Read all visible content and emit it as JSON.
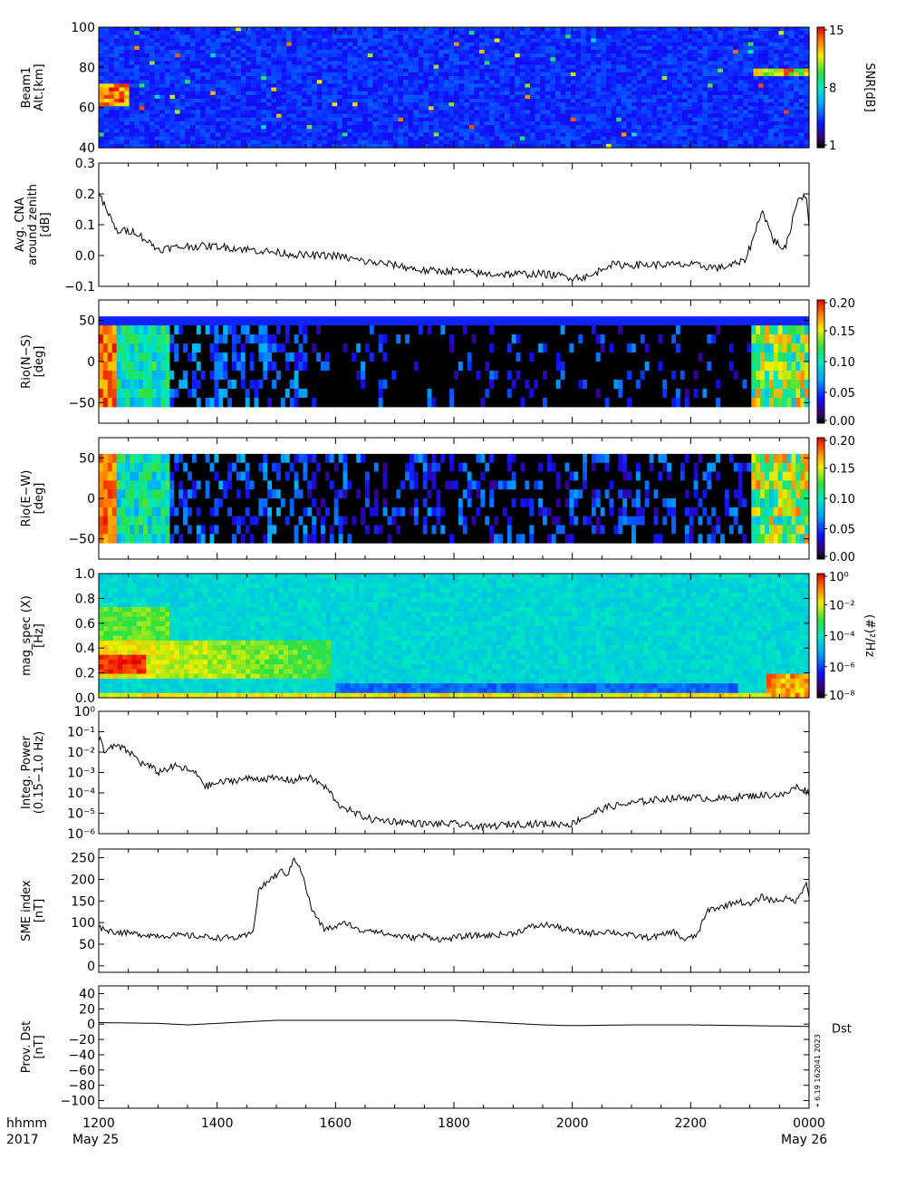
{
  "x_axis": {
    "ticks": [
      "1200",
      "1400",
      "1600",
      "1800",
      "2000",
      "2200",
      "0000"
    ],
    "row_label_1": "hhmm",
    "row_label_2": "2017",
    "start_date": "May 25",
    "end_date": "May 26"
  },
  "side_stamp": "⌖ 6.19 162041 2023",
  "colors": {
    "line": "#000000",
    "background": "#ffffff"
  },
  "chart_data": [
    {
      "id": "beam1",
      "type": "heatmap",
      "ylabel": "Beam1\nAlt.[km]",
      "yticks": [
        "40",
        "60",
        "80",
        "100"
      ],
      "ylim": [
        40,
        100
      ],
      "colorbar": {
        "label": "SNR[dB]",
        "ticks": [
          "1",
          "8",
          "15"
        ],
        "scale": "linear"
      }
    },
    {
      "id": "cna",
      "type": "line",
      "ylabel": "Avg. CNA\naround zenith\n[dB]",
      "yticks": [
        "−0.1",
        "0.0",
        "0.1",
        "0.2",
        "0.3"
      ],
      "ylim": [
        -0.1,
        0.3
      ],
      "x": [
        12.0,
        12.3,
        12.6,
        13.0,
        13.5,
        14.0,
        14.5,
        15.0,
        15.5,
        16.0,
        16.5,
        17.0,
        17.5,
        18.0,
        18.5,
        19.0,
        19.5,
        20.0,
        20.3,
        20.6,
        21.0,
        21.5,
        22.0,
        22.5,
        22.9,
        23.05,
        23.2,
        23.4,
        23.6,
        23.8,
        23.95,
        24.0
      ],
      "values": [
        0.2,
        0.08,
        0.08,
        0.02,
        0.03,
        0.03,
        0.02,
        0.01,
        0.0,
        0.0,
        -0.02,
        -0.03,
        -0.05,
        -0.05,
        -0.06,
        -0.06,
        -0.06,
        -0.07,
        -0.07,
        -0.03,
        -0.03,
        -0.03,
        -0.03,
        -0.04,
        -0.02,
        0.05,
        0.15,
        0.05,
        0.02,
        0.18,
        0.2,
        0.1
      ]
    },
    {
      "id": "rio-ns",
      "type": "heatmap",
      "ylabel": "Rio(N−S)\n[deg]",
      "yticks": [
        "−50",
        "0",
        "50"
      ],
      "ylim": [
        -75,
        75
      ],
      "colorbar": {
        "label": "",
        "ticks": [
          "0.00",
          "0.05",
          "0.10",
          "0.15",
          "0.20"
        ],
        "scale": "linear"
      }
    },
    {
      "id": "rio-ew",
      "type": "heatmap",
      "ylabel": "Rio(E−W)\n[deg]",
      "yticks": [
        "−50",
        "0",
        "50"
      ],
      "ylim": [
        -75,
        75
      ],
      "colorbar": {
        "label": "",
        "ticks": [
          "0.00",
          "0.05",
          "0.10",
          "0.15",
          "0.20"
        ],
        "scale": "linear"
      }
    },
    {
      "id": "mag-spec",
      "type": "heatmap",
      "ylabel": "mag_spec (X)\n[Hz]",
      "yticks": [
        "0.0",
        "0.2",
        "0.4",
        "0.6",
        "0.8",
        "1.0"
      ],
      "ylim": [
        0,
        1
      ],
      "colorbar": {
        "label": "(#)²/Hz",
        "ticks": [
          "10⁻⁸",
          "10⁻⁶",
          "10⁻⁴",
          "10⁻²",
          "10⁰"
        ],
        "scale": "log"
      }
    },
    {
      "id": "integ-power",
      "type": "line",
      "ylabel": "Integ. Power\n(0.15−1.0 Hz)",
      "yticks": [
        "10⁻⁶",
        "10⁻⁵",
        "10⁻⁴",
        "10⁻³",
        "10⁻²",
        "10⁻¹",
        "10⁰"
      ],
      "ylim": [
        1e-06,
        1
      ],
      "yscale": "log",
      "x": [
        12.0,
        12.1,
        12.3,
        12.5,
        12.7,
        13.0,
        13.3,
        13.6,
        13.8,
        14.0,
        14.5,
        15.0,
        15.3,
        15.5,
        15.8,
        16.0,
        16.3,
        16.6,
        17.0,
        17.5,
        18.0,
        18.5,
        19.0,
        19.5,
        20.0,
        20.3,
        20.6,
        21.0,
        21.5,
        22.0,
        22.5,
        23.0,
        23.3,
        23.6,
        23.8,
        24.0
      ],
      "values": [
        0.05,
        0.01,
        0.02,
        0.01,
        0.003,
        0.001,
        0.002,
        0.001,
        0.0002,
        0.0003,
        0.0005,
        0.0005,
        0.0004,
        0.0006,
        0.0002,
        3e-05,
        1e-05,
        5e-06,
        4e-06,
        3e-06,
        3e-06,
        2e-06,
        3e-06,
        3e-06,
        3e-06,
        8e-06,
        2e-05,
        3e-05,
        5e-05,
        6e-05,
        5e-05,
        7e-05,
        8e-05,
        8e-05,
        0.0002,
        0.0001
      ]
    },
    {
      "id": "sme",
      "type": "line",
      "ylabel": "SME index\n[nT]",
      "yticks": [
        "0",
        "50",
        "100",
        "150",
        "200",
        "250"
      ],
      "ylim": [
        -15,
        270
      ],
      "x": [
        12.0,
        12.2,
        12.5,
        13.0,
        13.5,
        14.0,
        14.4,
        14.6,
        14.7,
        14.9,
        15.1,
        15.2,
        15.3,
        15.4,
        15.6,
        15.8,
        16.0,
        16.2,
        16.4,
        16.6,
        16.8,
        17.0,
        17.3,
        17.5,
        17.8,
        18.0,
        18.3,
        18.6,
        19.0,
        19.3,
        19.6,
        20.0,
        20.3,
        20.6,
        21.0,
        21.3,
        21.5,
        21.7,
        21.9,
        22.1,
        22.3,
        22.5,
        22.8,
        23.0,
        23.2,
        23.4,
        23.6,
        23.8,
        23.95,
        24.0
      ],
      "values": [
        90,
        80,
        75,
        70,
        70,
        65,
        65,
        75,
        175,
        200,
        220,
        210,
        250,
        230,
        130,
        85,
        90,
        100,
        80,
        85,
        75,
        70,
        65,
        70,
        60,
        65,
        70,
        70,
        75,
        90,
        95,
        80,
        75,
        80,
        70,
        65,
        70,
        80,
        60,
        70,
        130,
        135,
        150,
        140,
        160,
        150,
        155,
        150,
        195,
        165
      ]
    },
    {
      "id": "dst",
      "type": "line",
      "ylabel": "Prov. Dst\n[nT]",
      "series_label": "Dst",
      "yticks": [
        "−100",
        "−80",
        "−60",
        "−40",
        "−20",
        "0",
        "20",
        "40"
      ],
      "ylim": [
        -110,
        50
      ],
      "x": [
        12.0,
        13.0,
        13.5,
        14.5,
        15.0,
        16.0,
        17.0,
        18.0,
        18.5,
        19.0,
        19.5,
        20.0,
        21.0,
        22.0,
        23.0,
        24.0
      ],
      "values": [
        2,
        1,
        -1,
        3,
        5,
        5,
        5,
        5,
        3,
        1,
        -1,
        -2,
        -1,
        -1,
        -2,
        -3
      ]
    }
  ]
}
